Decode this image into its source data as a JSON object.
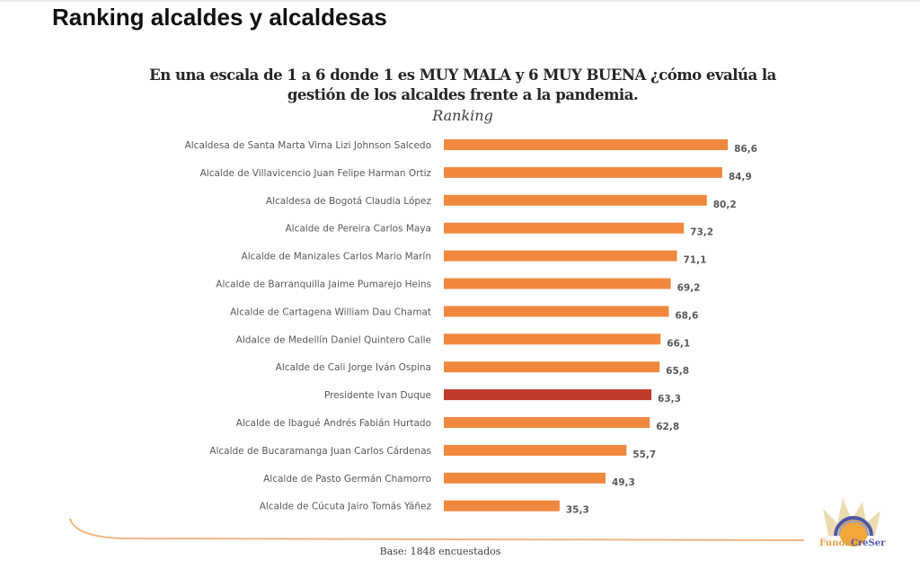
{
  "page": {
    "title": "Ranking alcaldes y alcaldesas"
  },
  "chart_data": {
    "type": "bar",
    "orientation": "horizontal",
    "title_line1": "En una escala de 1 a 6 donde 1 es MUY MALA y 6 MUY BUENA ¿cómo evalúa la",
    "title_line2": "gestión de los alcaldes frente a la pandemia.",
    "subtitle": "Ranking",
    "xlabel": "",
    "ylabel": "",
    "xlim": [
      0,
      100
    ],
    "grid": false,
    "legend": "none",
    "categories": [
      "Alcaldesa de Santa Marta Virna Lizi Johnson Salcedo",
      "Alcalde de Villavicencio Juan Felipe Harman Ortiz",
      "Alcaldesa de Bogotá Claudia López",
      "Alcalde de Pereira Carlos Maya",
      "Alcalde de Manizales Carlos Mario Marín",
      "Alcalde de Barranquilla Jaime Pumarejo Heins",
      "Alcalde de Cartagena William Dau Chamat",
      "Aldalce de Medellín Daniel Quintero Calle",
      "Alcalde de Cali Jorge Iván Ospina",
      "Presidente Ivan Duque",
      "Alcalde de Ibagué Andrés Fabián Hurtado",
      "Alcalde de Bucaramanga Juan Carlos Cárdenas",
      "Alcalde de Pasto Germán Chamorro",
      "Alcalde de Cúcuta Jairo Tomás Yáñez"
    ],
    "values": [
      86.6,
      84.9,
      80.2,
      73.2,
      71.1,
      69.2,
      68.6,
      66.1,
      65.8,
      63.3,
      62.8,
      55.7,
      49.3,
      35.3
    ],
    "value_labels": [
      "86,6",
      "84,9",
      "80,2",
      "73,2",
      "71,1",
      "69,2",
      "68,6",
      "66,1",
      "65,8",
      "63,3",
      "62,8",
      "55,7",
      "49,3",
      "35,3"
    ],
    "highlight_index": 9,
    "colors": {
      "bar": "#f0883e",
      "highlight": "#c0392b",
      "label": "#595959",
      "accent_line": "#f0b483"
    }
  },
  "footer": {
    "base_note": "Base: 1848 encuestados",
    "logo_part1": "Funda",
    "logo_part2": "CreSer"
  }
}
